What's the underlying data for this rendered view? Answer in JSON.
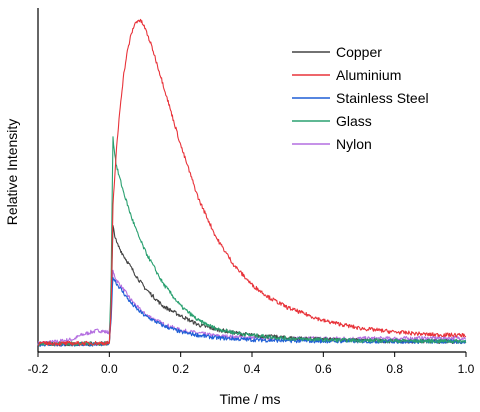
{
  "chart_data": {
    "type": "line",
    "title": "",
    "xlabel": "Time / ms",
    "ylabel": "Relative Intensity",
    "xlim": [
      -0.2,
      1.0
    ],
    "ylim": [
      0,
      1.0
    ],
    "x_ticks": [
      "-0.2",
      "0.0",
      "0.2",
      "0.4",
      "0.6",
      "0.8",
      "1.0"
    ],
    "y_ticks_labeled": false,
    "grid": false,
    "legend_position": "top-right",
    "series": [
      {
        "name": "Copper",
        "color": "#444444",
        "x": [
          -0.2,
          -0.15,
          -0.1,
          -0.05,
          0.0,
          0.005,
          0.01,
          0.015,
          0.02,
          0.04,
          0.06,
          0.08,
          0.1,
          0.15,
          0.2,
          0.25,
          0.3,
          0.35,
          0.4,
          0.5,
          0.6,
          0.7,
          0.8,
          0.9,
          1.0
        ],
        "values": [
          0.003,
          0.003,
          0.003,
          0.004,
          0.005,
          0.1,
          0.365,
          0.34,
          0.315,
          0.275,
          0.24,
          0.205,
          0.175,
          0.12,
          0.09,
          0.062,
          0.048,
          0.038,
          0.03,
          0.022,
          0.017,
          0.014,
          0.012,
          0.011,
          0.01
        ]
      },
      {
        "name": "Aluminium",
        "color": "#e8333a",
        "x": [
          -0.2,
          -0.1,
          0.0,
          0.005,
          0.01,
          0.02,
          0.03,
          0.04,
          0.05,
          0.06,
          0.07,
          0.08,
          0.09,
          0.1,
          0.12,
          0.15,
          0.2,
          0.25,
          0.3,
          0.35,
          0.4,
          0.45,
          0.5,
          0.6,
          0.7,
          0.8,
          0.9,
          1.0
        ],
        "values": [
          0.005,
          0.005,
          0.006,
          0.1,
          0.43,
          0.6,
          0.73,
          0.83,
          0.9,
          0.95,
          0.985,
          1.0,
          0.995,
          0.975,
          0.915,
          0.805,
          0.615,
          0.45,
          0.33,
          0.245,
          0.185,
          0.145,
          0.115,
          0.075,
          0.052,
          0.04,
          0.032,
          0.03
        ]
      },
      {
        "name": "Stainless Steel",
        "color": "#1f5fd6",
        "x": [
          -0.2,
          -0.1,
          0.0,
          0.005,
          0.01,
          0.02,
          0.04,
          0.06,
          0.08,
          0.1,
          0.15,
          0.2,
          0.25,
          0.3,
          0.4,
          0.5,
          0.6,
          0.8,
          1.0
        ],
        "values": [
          0.002,
          0.002,
          0.003,
          0.08,
          0.21,
          0.19,
          0.16,
          0.13,
          0.108,
          0.09,
          0.06,
          0.04,
          0.03,
          0.022,
          0.016,
          0.013,
          0.012,
          0.011,
          0.01
        ]
      },
      {
        "name": "Glass",
        "color": "#2aa070",
        "x": [
          -0.2,
          -0.1,
          0.0,
          0.005,
          0.01,
          0.015,
          0.02,
          0.04,
          0.06,
          0.08,
          0.1,
          0.15,
          0.2,
          0.25,
          0.3,
          0.35,
          0.4,
          0.5,
          0.6,
          0.7,
          0.8,
          0.9,
          1.0
        ],
        "values": [
          0.004,
          0.004,
          0.005,
          0.2,
          0.64,
          0.59,
          0.55,
          0.47,
          0.4,
          0.34,
          0.29,
          0.19,
          0.12,
          0.075,
          0.05,
          0.038,
          0.03,
          0.02,
          0.016,
          0.014,
          0.013,
          0.012,
          0.012
        ]
      },
      {
        "name": "Nylon",
        "color": "#b46fe0",
        "x": [
          -0.2,
          -0.15,
          -0.1,
          -0.08,
          -0.05,
          -0.03,
          -0.02,
          -0.01,
          0.0,
          0.005,
          0.01,
          0.02,
          0.04,
          0.06,
          0.08,
          0.1,
          0.15,
          0.2,
          0.3,
          0.4,
          0.5,
          0.6,
          0.8,
          1.0
        ],
        "values": [
          0.005,
          0.01,
          0.018,
          0.03,
          0.04,
          0.045,
          0.043,
          0.04,
          0.04,
          0.12,
          0.225,
          0.2,
          0.17,
          0.14,
          0.115,
          0.095,
          0.065,
          0.045,
          0.028,
          0.022,
          0.02,
          0.02,
          0.02,
          0.022
        ]
      }
    ]
  }
}
